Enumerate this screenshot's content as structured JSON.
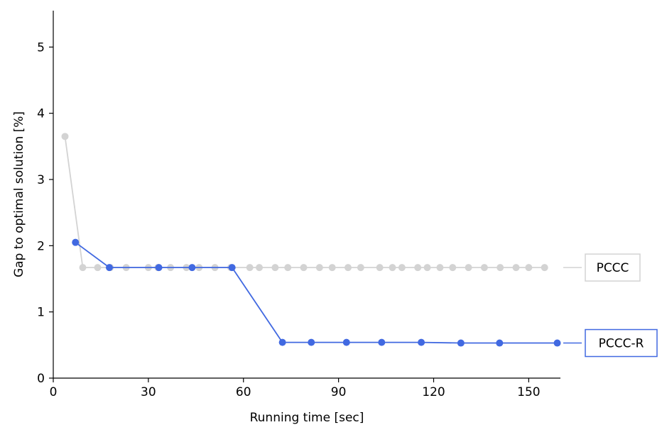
{
  "chart_data": {
    "type": "line",
    "xlabel": "Running time [sec]",
    "ylabel": "Gap to optimal solution [%]",
    "xlim": [
      0,
      160
    ],
    "ylim": [
      0,
      5.55
    ],
    "xticks": [
      0,
      30,
      60,
      90,
      120,
      150
    ],
    "yticks": [
      0,
      1,
      2,
      3,
      4,
      5
    ],
    "grid": false,
    "legend": "right, inline end labels",
    "series": [
      {
        "name": "PCCC",
        "color": "#d3d3d3",
        "x": [
          3.7,
          9.3,
          14.0,
          18.0,
          23.0,
          30.0,
          33.0,
          37.0,
          42.0,
          46.0,
          51.0,
          56.0,
          62.0,
          65.0,
          70.0,
          74.0,
          79.0,
          84.0,
          88.0,
          93.0,
          97.0,
          103.0,
          107.0,
          110.0,
          115.0,
          118.0,
          122.0,
          126.0,
          131.0,
          136.0,
          141.0,
          146.0,
          150.0,
          155.0
        ],
        "y": [
          3.65,
          1.67,
          1.67,
          1.67,
          1.67,
          1.67,
          1.67,
          1.67,
          1.67,
          1.67,
          1.67,
          1.67,
          1.67,
          1.67,
          1.67,
          1.67,
          1.67,
          1.67,
          1.67,
          1.67,
          1.67,
          1.67,
          1.67,
          1.67,
          1.67,
          1.67,
          1.67,
          1.67,
          1.67,
          1.67,
          1.67,
          1.67,
          1.67,
          1.67
        ]
      },
      {
        "name": "PCCC-R",
        "color": "#4169e1",
        "x": [
          7.0,
          17.7,
          33.3,
          43.8,
          56.4,
          72.3,
          81.4,
          92.5,
          103.6,
          116.1,
          128.6,
          140.8,
          159.0
        ],
        "y": [
          2.05,
          1.67,
          1.67,
          1.67,
          1.67,
          0.54,
          0.54,
          0.54,
          0.54,
          0.54,
          0.53,
          0.53,
          0.53
        ]
      }
    ]
  }
}
